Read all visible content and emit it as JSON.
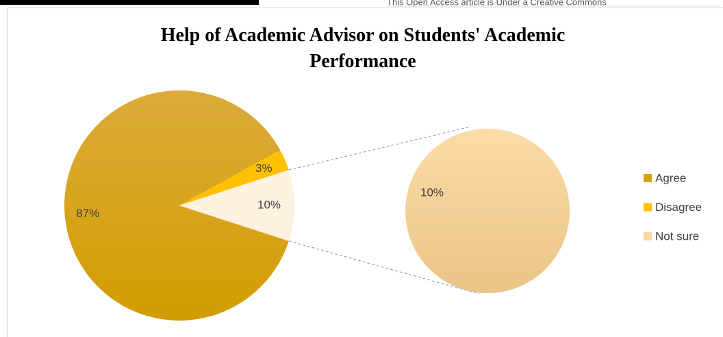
{
  "header": {
    "text": "This Open Access article is Under a Creative Commons"
  },
  "chart_data": {
    "type": "pie-of-pie",
    "title": "Help of Academic Advisor on Students' Academic Performance",
    "categories": [
      "Agree",
      "Disagree",
      "Not sure"
    ],
    "values": [
      87,
      3,
      10
    ],
    "value_labels": [
      "87%",
      "3%",
      "10%"
    ],
    "colors": [
      "#d6a206",
      "#ffc000",
      "#f9d9a2"
    ],
    "legend": "right"
  }
}
